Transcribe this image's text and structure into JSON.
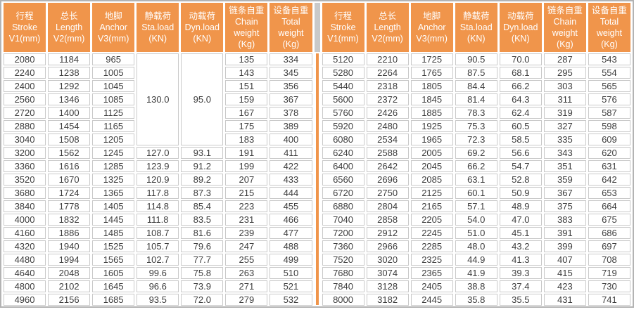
{
  "colors": {
    "header_bg": "#F0954B",
    "divider": "#F0954B",
    "cell_border": "#C9C9C9",
    "frame_border": "#B3B3B3",
    "header_gap": "#C9C9C9",
    "body_text": "#3D3D3D",
    "header_text": "#FFFFFF"
  },
  "columns": [
    {
      "id": "stroke",
      "lines": [
        "行程",
        "Stroke",
        "V1(mm)"
      ]
    },
    {
      "id": "length",
      "lines": [
        "总长",
        "Length",
        "V2(mm)"
      ]
    },
    {
      "id": "anchor",
      "lines": [
        "地脚",
        "Anchor",
        "V3(mm)"
      ]
    },
    {
      "id": "sta-load",
      "lines": [
        "静载荷",
        "Sta.load",
        "(KN)"
      ]
    },
    {
      "id": "dyn-load",
      "lines": [
        "动载荷",
        "Dyn.load",
        "(KN)"
      ]
    },
    {
      "id": "chain-weight",
      "lines": [
        "链条自重",
        "Chain",
        "weight",
        "(Kg)"
      ]
    },
    {
      "id": "total-weight",
      "lines": [
        "设备自重",
        "Total",
        "weight",
        "(Kg)"
      ]
    }
  ],
  "left_table": {
    "merged_cells": [
      {
        "col": 3,
        "start_row": 0,
        "rowspan": 7,
        "value": "130.0"
      },
      {
        "col": 4,
        "start_row": 0,
        "rowspan": 7,
        "value": "95.0"
      }
    ],
    "rows": [
      [
        "2080",
        "1184",
        "965",
        null,
        null,
        "135",
        "334"
      ],
      [
        "2240",
        "1238",
        "1005",
        null,
        null,
        "143",
        "345"
      ],
      [
        "2400",
        "1292",
        "1045",
        null,
        null,
        "151",
        "356"
      ],
      [
        "2560",
        "1346",
        "1085",
        null,
        null,
        "159",
        "367"
      ],
      [
        "2720",
        "1400",
        "1125",
        null,
        null,
        "167",
        "378"
      ],
      [
        "2880",
        "1454",
        "1165",
        null,
        null,
        "175",
        "389"
      ],
      [
        "3040",
        "1508",
        "1205",
        null,
        null,
        "183",
        "400"
      ],
      [
        "3200",
        "1562",
        "1245",
        "127.0",
        "93.1",
        "191",
        "411"
      ],
      [
        "3360",
        "1616",
        "1285",
        "123.9",
        "91.2",
        "199",
        "422"
      ],
      [
        "3520",
        "1670",
        "1325",
        "120.9",
        "89.2",
        "207",
        "433"
      ],
      [
        "3680",
        "1724",
        "1365",
        "117.8",
        "87.3",
        "215",
        "444"
      ],
      [
        "3840",
        "1778",
        "1405",
        "114.8",
        "85.4",
        "223",
        "455"
      ],
      [
        "4000",
        "1832",
        "1445",
        "111.8",
        "83.5",
        "231",
        "466"
      ],
      [
        "4160",
        "1886",
        "1485",
        "108.7",
        "81.6",
        "239",
        "477"
      ],
      [
        "4320",
        "1940",
        "1525",
        "105.7",
        "79.6",
        "247",
        "488"
      ],
      [
        "4480",
        "1994",
        "1565",
        "102.7",
        "77.7",
        "255",
        "499"
      ],
      [
        "4640",
        "2048",
        "1605",
        "99.6",
        "75.8",
        "263",
        "510"
      ],
      [
        "4800",
        "2102",
        "1645",
        "96.6",
        "73.9",
        "271",
        "521"
      ],
      [
        "4960",
        "2156",
        "1685",
        "93.5",
        "72.0",
        "279",
        "532"
      ]
    ]
  },
  "right_table": {
    "merged_cells": [],
    "rows": [
      [
        "5120",
        "2210",
        "1725",
        "90.5",
        "70.0",
        "287",
        "543"
      ],
      [
        "5280",
        "2264",
        "1765",
        "87.5",
        "68.1",
        "295",
        "554"
      ],
      [
        "5440",
        "2318",
        "1805",
        "84.4",
        "66.2",
        "303",
        "565"
      ],
      [
        "5600",
        "2372",
        "1845",
        "81.4",
        "64.3",
        "311",
        "576"
      ],
      [
        "5760",
        "2426",
        "1885",
        "78.3",
        "62.4",
        "319",
        "587"
      ],
      [
        "5920",
        "2480",
        "1925",
        "75.3",
        "60.5",
        "327",
        "598"
      ],
      [
        "6080",
        "2534",
        "1965",
        "72.3",
        "58.5",
        "335",
        "609"
      ],
      [
        "6240",
        "2588",
        "2005",
        "69.2",
        "56.6",
        "343",
        "620"
      ],
      [
        "6400",
        "2642",
        "2045",
        "66.2",
        "54.7",
        "351",
        "631"
      ],
      [
        "6560",
        "2696",
        "2085",
        "63.1",
        "52.8",
        "359",
        "642"
      ],
      [
        "6720",
        "2750",
        "2125",
        "60.1",
        "50.9",
        "367",
        "653"
      ],
      [
        "6880",
        "2804",
        "2165",
        "57.1",
        "48.9",
        "375",
        "664"
      ],
      [
        "7040",
        "2858",
        "2205",
        "54.0",
        "47.0",
        "383",
        "675"
      ],
      [
        "7200",
        "2912",
        "2245",
        "51.0",
        "45.1",
        "391",
        "686"
      ],
      [
        "7360",
        "2966",
        "2285",
        "48.0",
        "43.2",
        "399",
        "697"
      ],
      [
        "7520",
        "3020",
        "2325",
        "44.9",
        "41.3",
        "407",
        "708"
      ],
      [
        "7680",
        "3074",
        "2365",
        "41.9",
        "39.3",
        "415",
        "719"
      ],
      [
        "7840",
        "3128",
        "2405",
        "38.8",
        "37.4",
        "423",
        "730"
      ],
      [
        "8000",
        "3182",
        "2445",
        "35.8",
        "35.5",
        "431",
        "741"
      ]
    ]
  }
}
